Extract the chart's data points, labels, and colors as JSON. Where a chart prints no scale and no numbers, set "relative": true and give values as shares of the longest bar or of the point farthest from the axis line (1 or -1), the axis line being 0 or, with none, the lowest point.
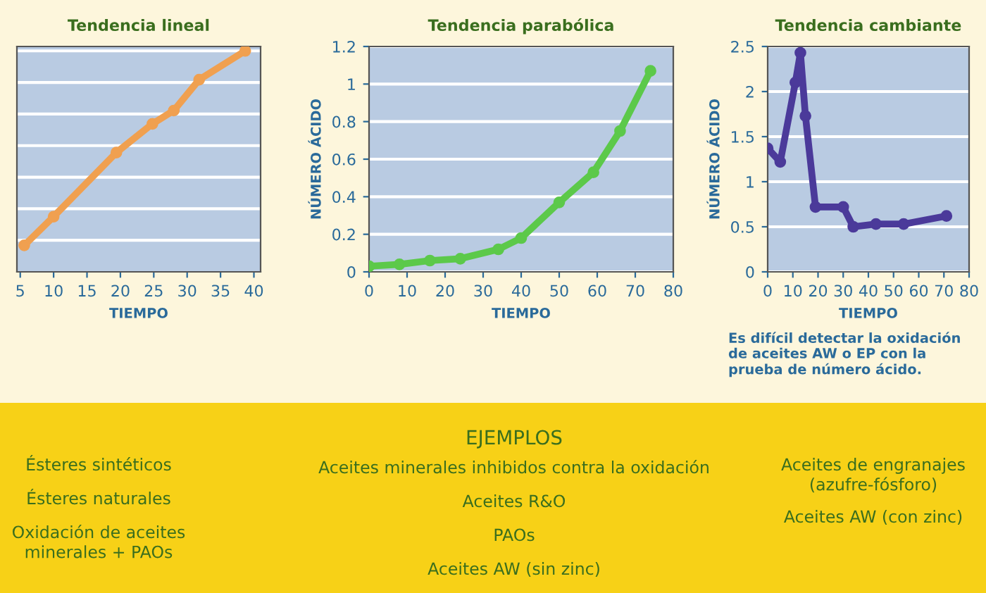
{
  "chart_data": [
    {
      "type": "line",
      "title": "Tendencia lineal",
      "xlabel": "TIEMPO",
      "relative": true,
      "color": "#f0a050",
      "marker": "circle",
      "grid": "y",
      "x": [
        5.6,
        10,
        19.4,
        24.8,
        28,
        31.8,
        38.7
      ],
      "values": [
        0.12,
        0.25,
        0.54,
        0.67,
        0.73,
        0.87,
        1
      ],
      "xlim": [
        4.5,
        41
      ],
      "xticks": [
        5,
        10,
        15,
        20,
        25,
        30,
        35,
        40
      ],
      "tick_labels": "x",
      "annotations": [
        "Ésteres sintéticos",
        "Ésteres naturales",
        "Oxidación de aceites\nminerales + PAOs"
      ]
    },
    {
      "type": "line",
      "title": "Tendencia parabólica",
      "xlabel": "TIEMPO",
      "ylabel": "NÚMERO ÁCIDO",
      "color": "#5cc94a",
      "marker": "circle",
      "grid": "y",
      "x": [
        0,
        8,
        16,
        24,
        34,
        40,
        50,
        59,
        66,
        74
      ],
      "values": [
        0.03,
        0.04,
        0.06,
        0.07,
        0.12,
        0.18,
        0.37,
        0.53,
        0.75,
        1.07
      ],
      "xlim": [
        0,
        80
      ],
      "xticks": [
        0,
        10,
        20,
        30,
        40,
        50,
        60,
        70,
        80
      ],
      "ylim": [
        0,
        1.2
      ],
      "yticks": [
        0,
        0.2,
        0.4,
        0.6,
        0.8,
        1,
        1.2
      ],
      "annotations": [
        "EJEMPLOS",
        "Aceites minerales inhibidos contra la oxidación",
        "Aceites R&O",
        "PAOs",
        "Aceites AW (sin zinc)"
      ]
    },
    {
      "type": "line",
      "title": "Tendencia cambiante",
      "xlabel": "TIEMPO",
      "ylabel": "NÚMERO ÁCIDO",
      "color": "#4b3a9a",
      "marker": "circle",
      "grid": "y",
      "x": [
        0,
        5,
        11,
        13,
        15,
        19,
        30,
        34,
        43,
        54,
        71
      ],
      "values": [
        1.37,
        1.22,
        2.1,
        2.43,
        1.73,
        0.72,
        0.72,
        0.5,
        0.53,
        0.53,
        0.62
      ],
      "xlim": [
        0,
        80
      ],
      "xticks": [
        0,
        10,
        20,
        30,
        40,
        50,
        60,
        70,
        80
      ],
      "ylim": [
        0,
        2.5
      ],
      "yticks": [
        0,
        0.5,
        1,
        1.5,
        2,
        2.5
      ],
      "annotations": [
        "Es difícil detectar la oxidación\nde aceites AW o EP con la\nprueba de número ácido.",
        "Aceites de engranajes\n(azufre-fósforo)",
        "Aceites AW (con zinc)"
      ]
    }
  ]
}
